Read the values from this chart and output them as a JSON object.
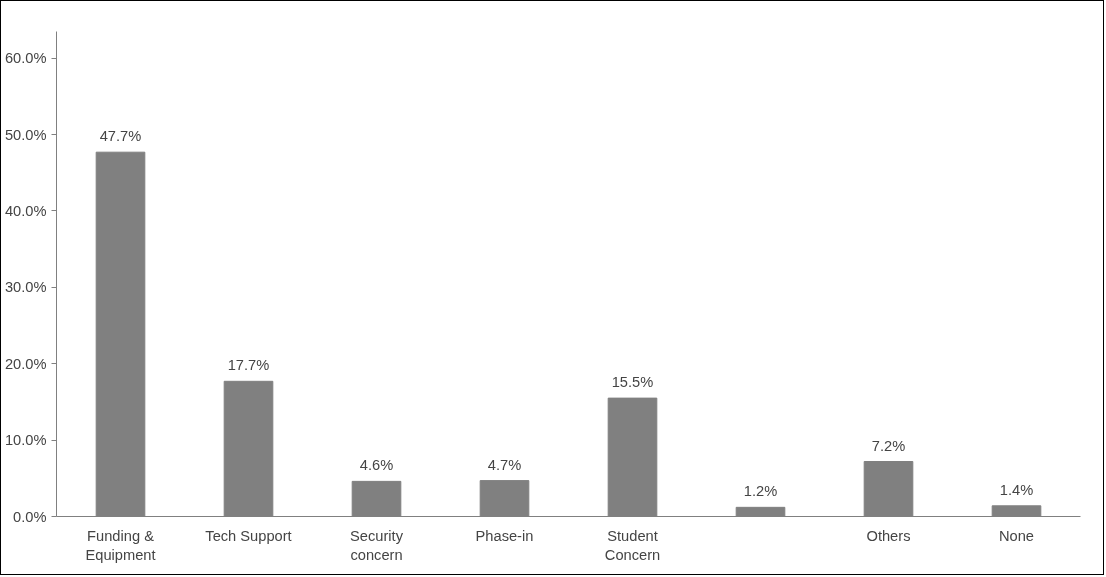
{
  "chart_data": {
    "type": "bar",
    "categories": [
      "Funding &\nEquipment",
      "Tech Support",
      "Security\nconcern",
      "Phase-in",
      "Student\nConcern",
      null,
      "Others",
      "None"
    ],
    "values": [
      47.7,
      17.7,
      4.6,
      4.7,
      15.5,
      1.2,
      7.2,
      1.4
    ],
    "value_labels": [
      "47.7%",
      "17.7%",
      "4.6%",
      "4.7%",
      "15.5%",
      "1.2%",
      "7.2%",
      "1.4%"
    ],
    "color": "#808080",
    "ylim": [
      0,
      63.5
    ],
    "yticks": [
      {
        "value": 0,
        "label": "0.0%"
      },
      {
        "value": 10,
        "label": "10.0%"
      },
      {
        "value": 20,
        "label": "20.0%"
      },
      {
        "value": 30,
        "label": "30.0%"
      },
      {
        "value": 40,
        "label": "40.0%"
      },
      {
        "value": 50,
        "label": "50.0%"
      },
      {
        "value": 60,
        "label": "60.0%"
      }
    ],
    "grid": false
  }
}
